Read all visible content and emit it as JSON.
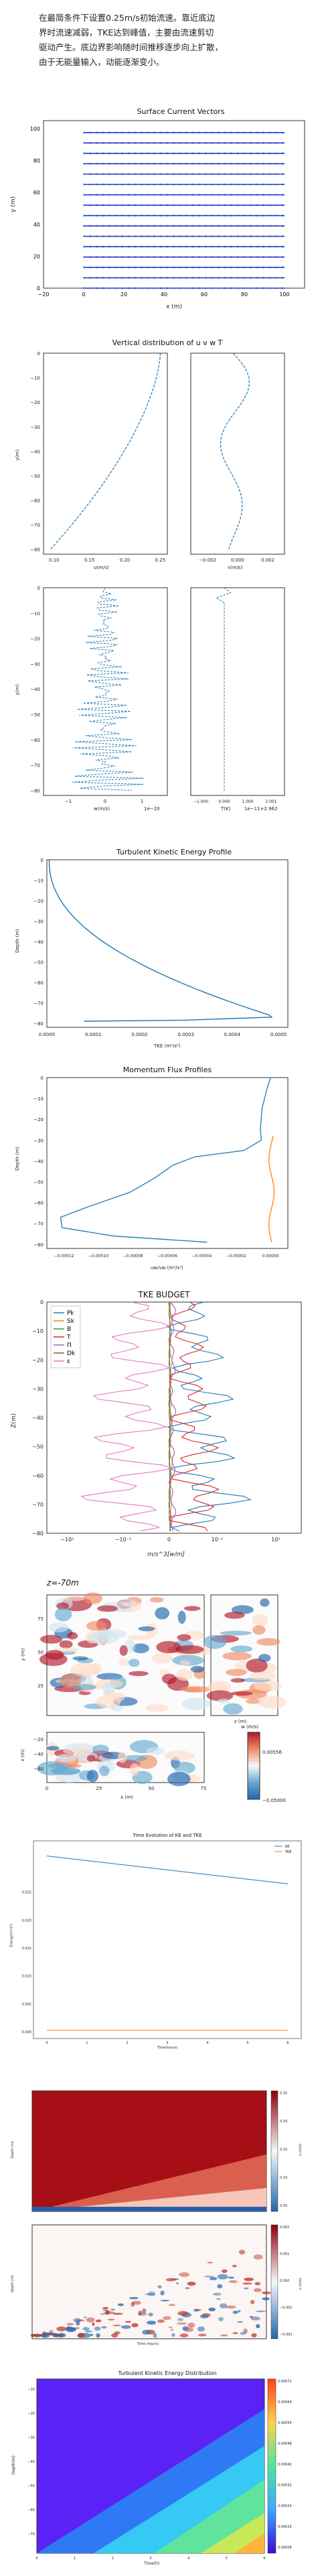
{
  "intro": {
    "line1": "在最简条件下设置0.25m/s初始流速。靠近底边",
    "line2": "界时流速减弱，TKE达到峰值，主要由流速剪切",
    "line3": "驱动产生。底边界影响随时间推移逐步向上扩散，",
    "line4": "由于无能量输入，动能逐渐变小。"
  },
  "chart_data": [
    {
      "type": "quiver",
      "title": "Surface Current Vectors",
      "xlabel": "x (m)",
      "ylabel": "y (m)",
      "xticks": [
        "−20",
        "0",
        "20",
        "40",
        "60",
        "80",
        "100"
      ],
      "yticks": [
        "0",
        "20",
        "40",
        "60",
        "80",
        "100"
      ],
      "rows_y": [
        0,
        6.5,
        13,
        19.5,
        26,
        32.5,
        39,
        45.5,
        52,
        58.5,
        65,
        71.5,
        78,
        84.5,
        91,
        97.5
      ]
    },
    {
      "type": "line",
      "title": "Vertical distribution of u v w T",
      "panels": [
        {
          "xlabel": "u(m/s)",
          "ylabel": "y(m)",
          "xticks": [
            "0.10",
            "0.15",
            "0.20",
            "0.25"
          ],
          "yticks": [
            "0",
            "−10",
            "−20",
            "−30",
            "−40",
            "−50",
            "−60",
            "−70",
            "−80"
          ]
        },
        {
          "xlabel": "v(m/s)",
          "xticks": [
            "−0.002",
            "0.000",
            "0.002"
          ]
        },
        {
          "xlabel": "w(m/s)",
          "ylabel": "y(m)",
          "xticks": [
            "−1",
            "0",
            "1"
          ],
          "offset": "1e−20"
        },
        {
          "xlabel": "T(K)",
          "xticks": [
            "−1.000",
            "0.000",
            "1.000",
            "2.001"
          ],
          "offset": "1e−11+2.962"
        }
      ]
    },
    {
      "type": "line",
      "title": "Turbulent Kinetic Energy Profile",
      "xlabel": "TKE (m²/s²)",
      "ylabel": "Depth (m)",
      "xticks": [
        "0.0000",
        "0.0001",
        "0.0002",
        "0.0003",
        "0.0004",
        "0.0005"
      ],
      "yticks": [
        "0",
        "−10",
        "−20",
        "−30",
        "−40",
        "−50",
        "−60",
        "−70",
        "−80"
      ]
    },
    {
      "type": "line",
      "title": "Momentum Flux Profiles",
      "xlabel": "uw/vw (m²/s²)",
      "ylabel": "Depth (m)",
      "xticks": [
        "−0.00012",
        "−0.00010",
        "−0.00008",
        "−0.00006",
        "−0.00004",
        "−0.00002",
        "0.00000"
      ],
      "yticks": [
        "0",
        "−10",
        "−20",
        "−30",
        "−40",
        "−50",
        "−60",
        "−70",
        "−80"
      ]
    },
    {
      "type": "line",
      "title": "TKE BUDGET",
      "xlabel": "m/s^3[w/m]",
      "ylabel": "Z(m)",
      "xticks": [
        "−10¹",
        "−10⁻¹",
        "0",
        "10⁻¹",
        "10¹"
      ],
      "yticks": [
        "0",
        "−10",
        "−20",
        "−30",
        "−40",
        "−50",
        "−60",
        "−70",
        "−80"
      ],
      "legend": [
        "Pk",
        "Sk",
        "B",
        "T",
        "Π",
        "Dk",
        "ε"
      ],
      "colors": [
        "#1f77b4",
        "#ff7f0e",
        "#2ca02c",
        "#d62728",
        "#9467bd",
        "#8c564b",
        "#e377c2"
      ]
    },
    {
      "type": "heatmap",
      "title": "z=-70m",
      "xlabel": "x (m)",
      "ylabel": "y (m)",
      "zlabel": "z (m)",
      "colorbar_label": "w (m/s)",
      "colorbar_ticks": [
        "0.00556",
        "−0.05000"
      ],
      "xticks": [
        "0",
        "25",
        "50",
        "75"
      ],
      "yticks": [
        "25",
        "50",
        "75"
      ],
      "zticks": [
        "−20",
        "−40",
        "−60"
      ]
    },
    {
      "type": "line",
      "title": "Time Evolution of KE and TKE",
      "xlabel": "Time(hours)",
      "ylabel": "Energy(m²/s²)",
      "legend": [
        "KE",
        "TKE"
      ],
      "xticks": [
        "0",
        "1",
        "2",
        "3",
        "4",
        "5",
        "6"
      ],
      "yticks": [
        "0.025",
        "0.020",
        "0.015",
        "0.010",
        "0.005",
        "0.000"
      ],
      "series": [
        {
          "name": "KE",
          "x": [
            0,
            6
          ],
          "values": [
            0.0315,
            0.0265
          ]
        },
        {
          "name": "TKE",
          "x": [
            0,
            6
          ],
          "values": [
            0.0003,
            0.0003
          ]
        }
      ]
    },
    {
      "type": "heatmap",
      "panels": [
        {
          "ylabel": "Depth (m)",
          "colorbar": [
            "0.25",
            "0.20",
            "0.15",
            "0.10",
            "0.05"
          ],
          "clabel": "u (m/s)"
        },
        {
          "ylabel": "Depth (m)",
          "xlabel": "Time (hours)",
          "colorbar": [
            "0.002",
            "0.001",
            "0.000",
            "−0.001",
            "−0.002"
          ],
          "clabel": "v (m/s)"
        }
      ]
    },
    {
      "type": "heatmap",
      "title": "Turbulent Kinetic Energy Distribution",
      "xlabel": "Time(h)",
      "ylabel": "Depth(m)",
      "xticks": [
        "0",
        "1",
        "2",
        "3",
        "4",
        "5",
        "6"
      ],
      "yticks": [
        "−10",
        "−20",
        "−30",
        "−40",
        "−50",
        "−60",
        "−70"
      ],
      "colorbar": [
        "0.00072",
        "0.00064",
        "0.00056",
        "0.00048",
        "0.00040",
        "0.00032",
        "0.00024",
        "0.00016",
        "0.00008"
      ]
    }
  ]
}
